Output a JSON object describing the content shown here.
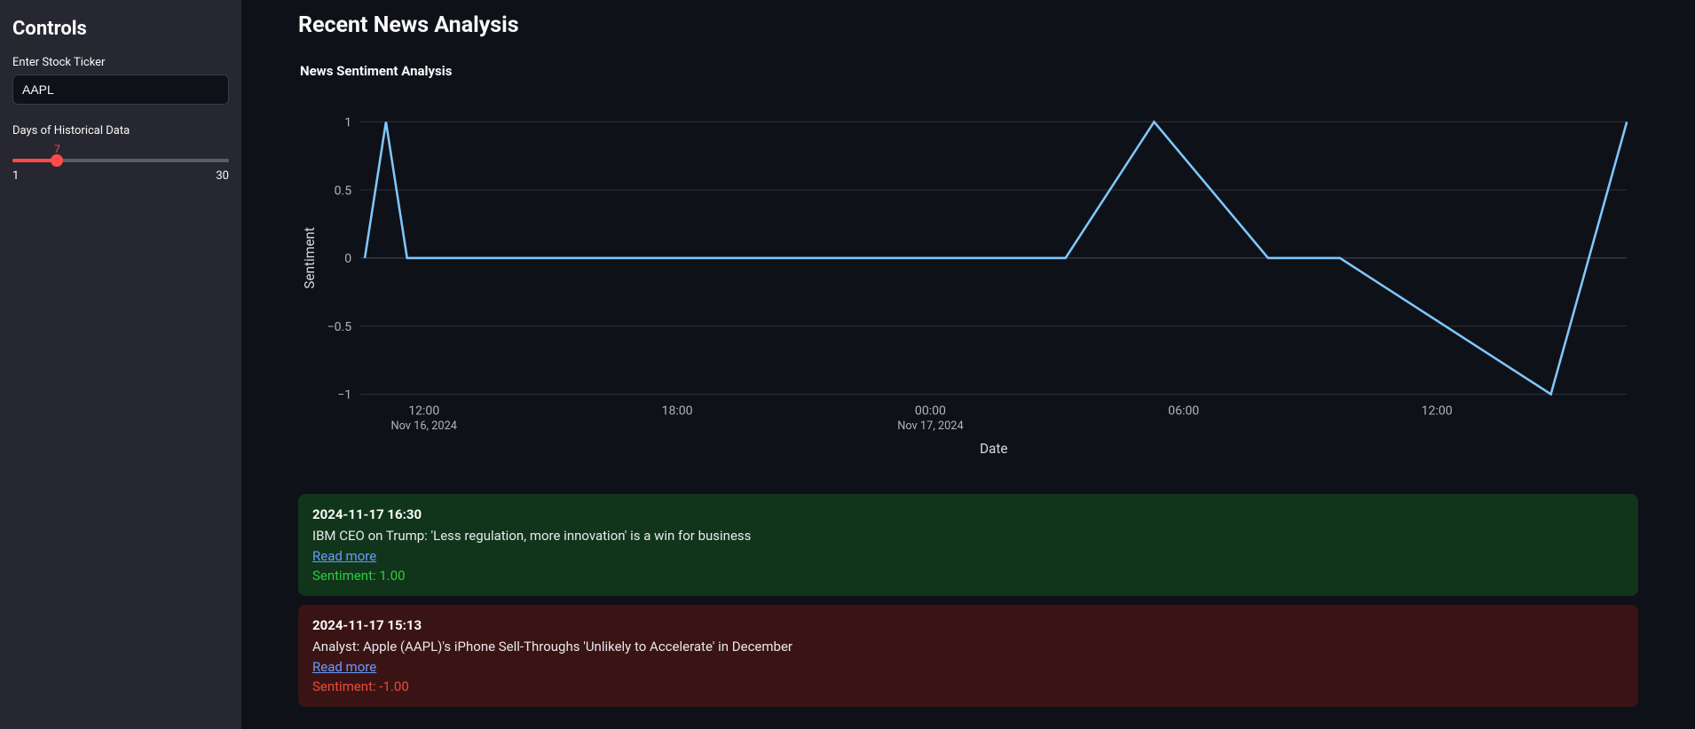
{
  "sidebar": {
    "heading": "Controls",
    "ticker_label": "Enter Stock Ticker",
    "ticker_value": "AAPL",
    "days_label": "Days of Historical Data",
    "days_value": 7,
    "days_min": 1,
    "days_max": 30
  },
  "main": {
    "page_title": "Recent News Analysis",
    "chart": {
      "title": "News Sentiment Analysis",
      "type": "line",
      "x_axis_label": "Date",
      "y_axis_label": "Sentiment",
      "line_color": "#7fc7ff",
      "background_color": "#0e1117",
      "grid_color": "#2a2b33",
      "text_color": "#b3b3b8",
      "ylim": [
        -1,
        1
      ],
      "ytick_step": 0.5,
      "yticks": [
        {
          "v": 1,
          "label": "1"
        },
        {
          "v": 0.5,
          "label": "0.5"
        },
        {
          "v": 0,
          "label": "0"
        },
        {
          "v": -0.5,
          "label": "−0.5"
        },
        {
          "v": -1,
          "label": "−1"
        }
      ],
      "xticks": [
        {
          "t": 12,
          "label": "12:00",
          "sub": "Nov 16, 2024"
        },
        {
          "t": 18,
          "label": "18:00",
          "sub": ""
        },
        {
          "t": 24,
          "label": "00:00",
          "sub": "Nov 17, 2024"
        },
        {
          "t": 30,
          "label": "06:00",
          "sub": ""
        },
        {
          "t": 36,
          "label": "12:00",
          "sub": ""
        }
      ],
      "t_min": 10.5,
      "t_max": 40.5,
      "points": [
        {
          "t": 10.6,
          "y": 0.0
        },
        {
          "t": 11.1,
          "y": 1.0
        },
        {
          "t": 11.6,
          "y": 0.0
        },
        {
          "t": 27.2,
          "y": 0.0
        },
        {
          "t": 29.3,
          "y": 1.0
        },
        {
          "t": 32.0,
          "y": 0.0
        },
        {
          "t": 33.7,
          "y": 0.0
        },
        {
          "t": 38.7,
          "y": -1.0
        },
        {
          "t": 40.5,
          "y": 1.0
        }
      ]
    },
    "news": [
      {
        "datetime": "2024-11-17 16:30",
        "title": "IBM CEO on Trump: 'Less regulation, more innovation' is a win for business",
        "link_text": "Read more",
        "sentiment_value": 1.0,
        "sentiment_text": "Sentiment: 1.00",
        "tone": "pos"
      },
      {
        "datetime": "2024-11-17 15:13",
        "title": "Analyst: Apple (AAPL)'s iPhone Sell-Throughs 'Unlikely to Accelerate' in December",
        "link_text": "Read more",
        "sentiment_value": -1.0,
        "sentiment_text": "Sentiment: -1.00",
        "tone": "neg"
      }
    ]
  }
}
